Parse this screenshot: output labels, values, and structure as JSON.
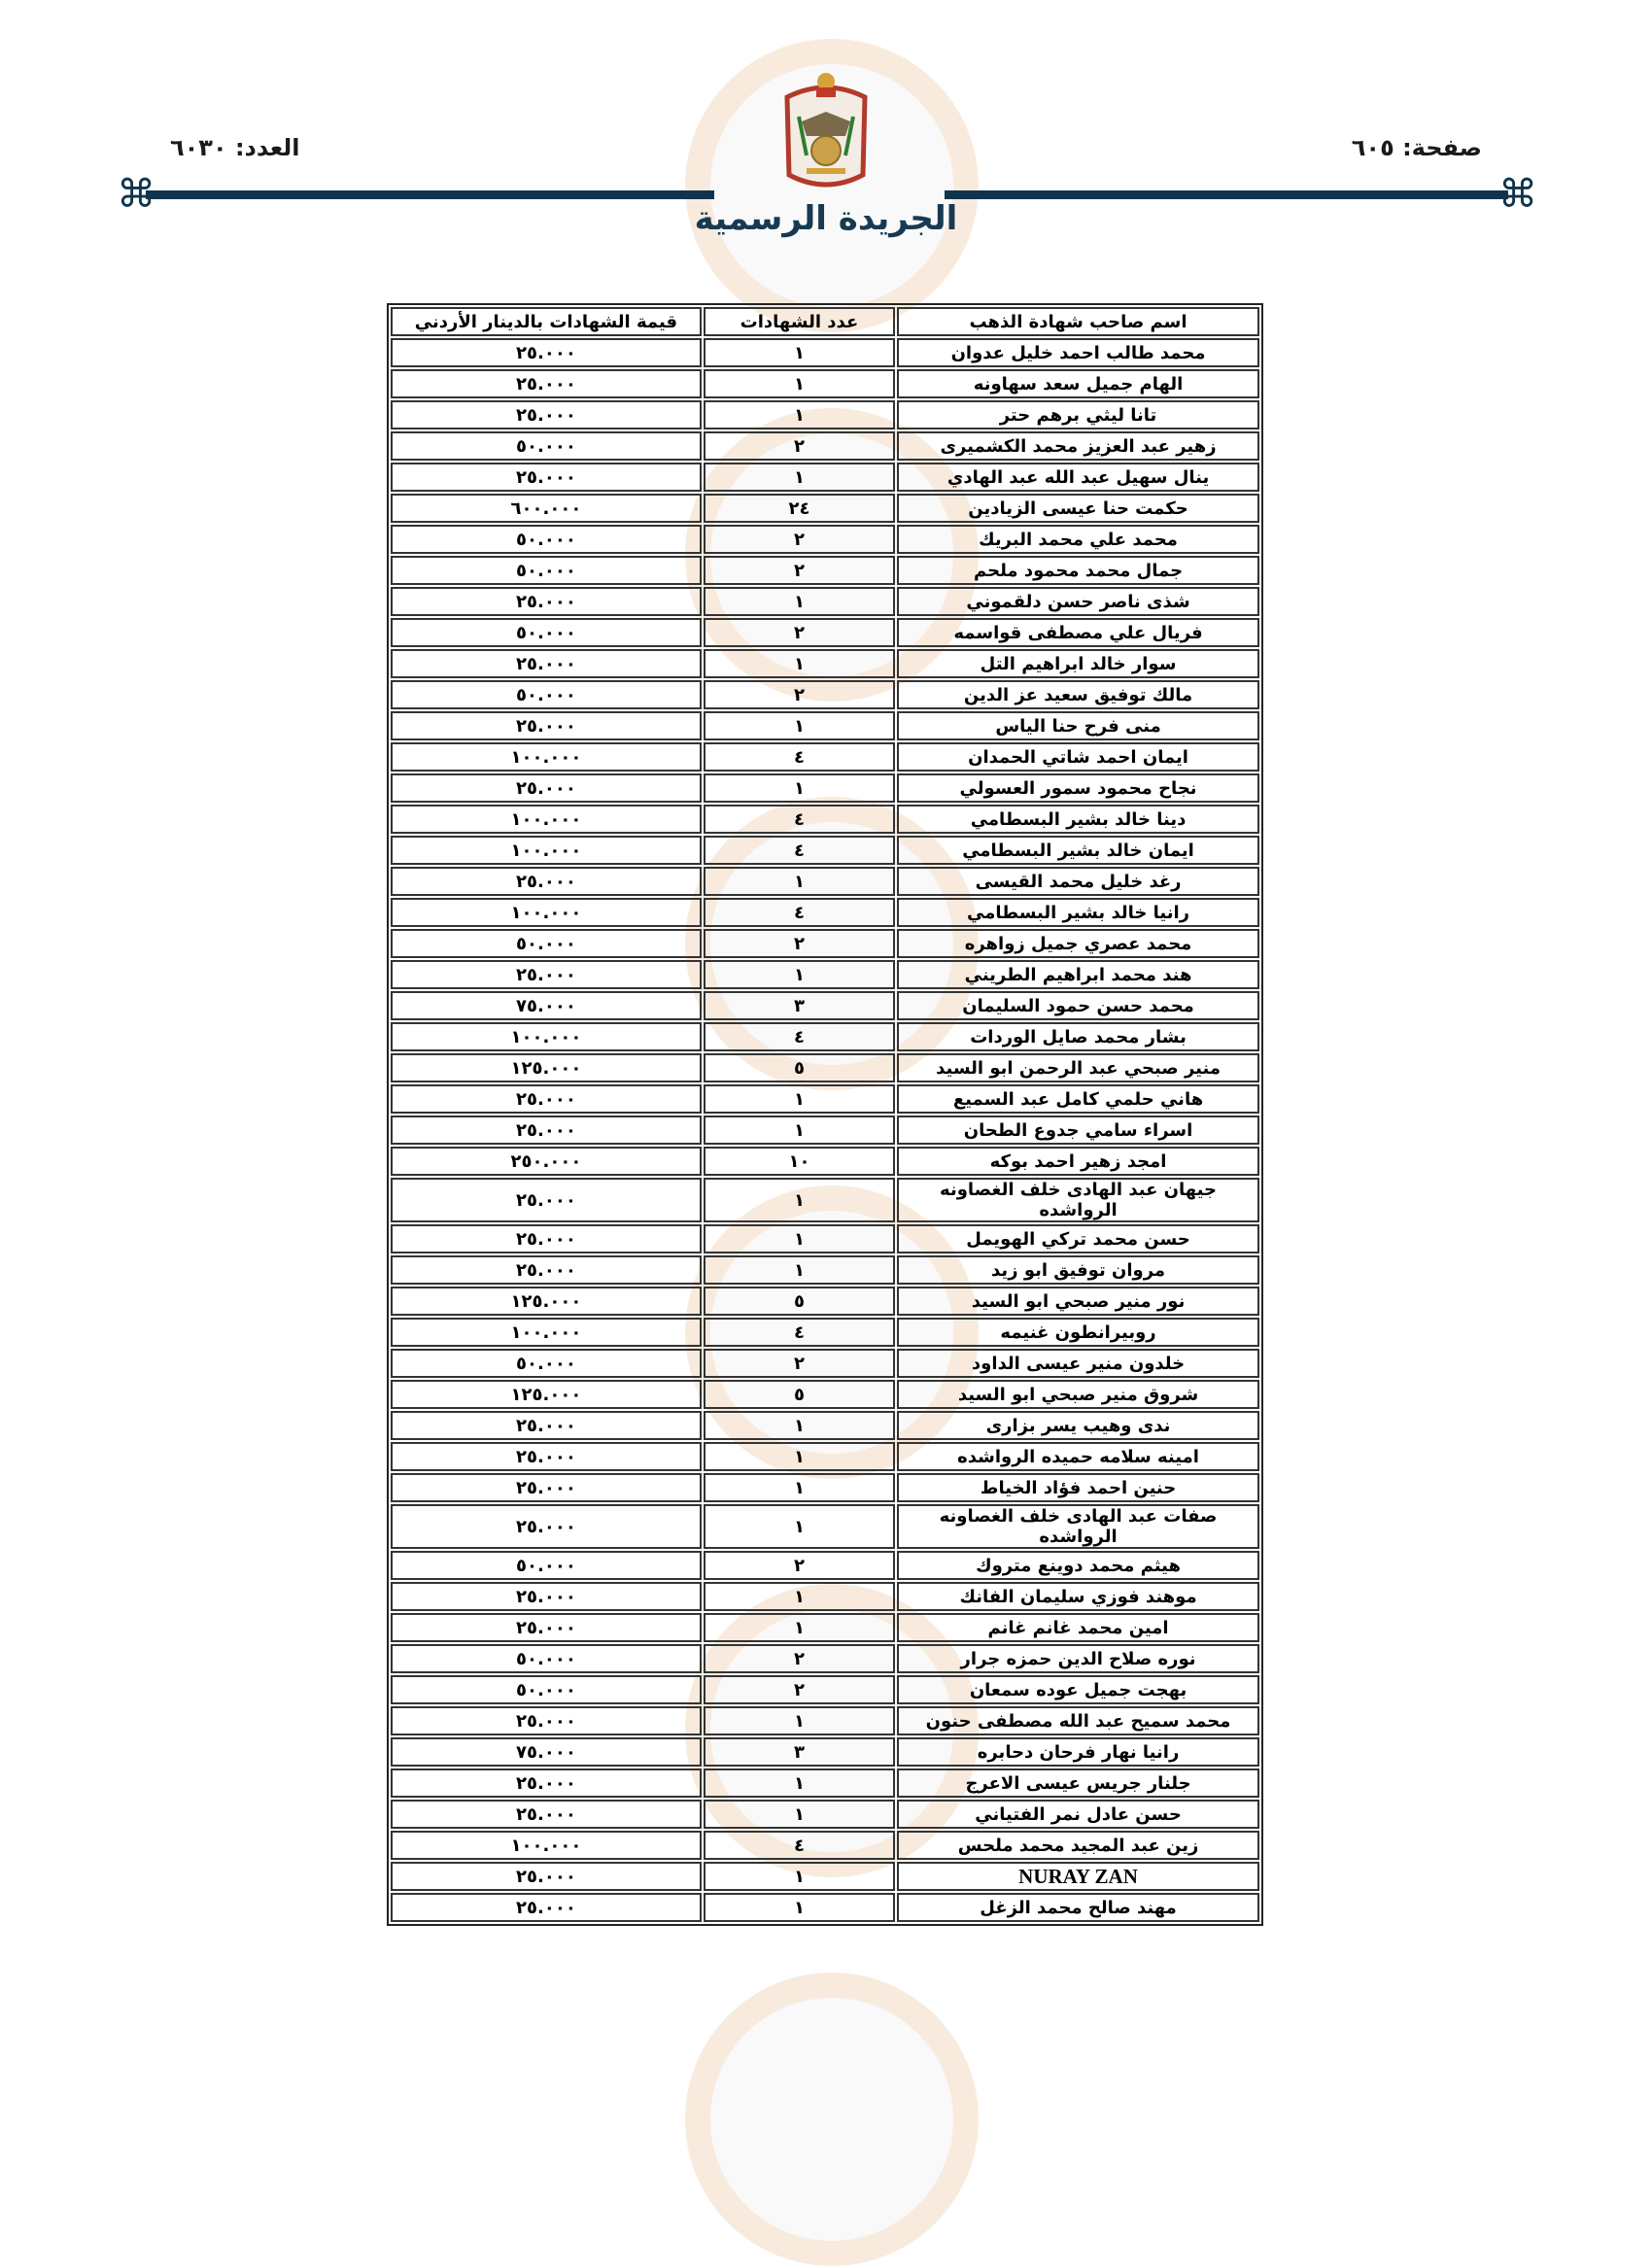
{
  "header": {
    "page_label": "صفحة: ٦٠٥",
    "issue_label": "العدد: ٦٠٣٠",
    "title": "الجريدة الرسمية",
    "emblem_icon": "jordan-coat-of-arms-icon",
    "accent_color": "#10344d"
  },
  "table": {
    "columns": [
      "اسم صاحب شهادة الذهب",
      "عدد الشهادات",
      "قيمة الشهادات بالدينار الأردني"
    ],
    "rows": [
      [
        "محمد طالب احمد خليل عدوان",
        "١",
        "٢٥.٠٠٠"
      ],
      [
        "الهام جميل سعد سهاونه",
        "١",
        "٢٥.٠٠٠"
      ],
      [
        "تانا ليثي برهم حتر",
        "١",
        "٢٥.٠٠٠"
      ],
      [
        "زهير عبد العزيز محمد الكشميرى",
        "٢",
        "٥٠.٠٠٠"
      ],
      [
        "ينال سهيل عبد الله عبد الهادي",
        "١",
        "٢٥.٠٠٠"
      ],
      [
        "حكمت حنا عيسى الزيادين",
        "٢٤",
        "٦٠٠.٠٠٠"
      ],
      [
        "محمد علي محمد البريك",
        "٢",
        "٥٠.٠٠٠"
      ],
      [
        "جمال محمد محمود ملحم",
        "٢",
        "٥٠.٠٠٠"
      ],
      [
        "شذى ناصر حسن دلقموني",
        "١",
        "٢٥.٠٠٠"
      ],
      [
        "فريال علي مصطفى قواسمه",
        "٢",
        "٥٠.٠٠٠"
      ],
      [
        "سوار خالد ابراهيم التل",
        "١",
        "٢٥.٠٠٠"
      ],
      [
        "مالك توفيق سعيد عز الدين",
        "٢",
        "٥٠.٠٠٠"
      ],
      [
        "منى فرح حنا الياس",
        "١",
        "٢٥.٠٠٠"
      ],
      [
        "ايمان احمد شاتي الحمدان",
        "٤",
        "١٠٠.٠٠٠"
      ],
      [
        "نجاح محمود سمور العسولي",
        "١",
        "٢٥.٠٠٠"
      ],
      [
        "دينا خالد بشير البسطامي",
        "٤",
        "١٠٠.٠٠٠"
      ],
      [
        "ايمان خالد بشير البسطامي",
        "٤",
        "١٠٠.٠٠٠"
      ],
      [
        "رغد خليل محمد القيسى",
        "١",
        "٢٥.٠٠٠"
      ],
      [
        "رانيا خالد بشير البسطامي",
        "٤",
        "١٠٠.٠٠٠"
      ],
      [
        "محمد عصري جميل زواهره",
        "٢",
        "٥٠.٠٠٠"
      ],
      [
        "هند محمد ابراهيم الطريني",
        "١",
        "٢٥.٠٠٠"
      ],
      [
        "محمد حسن حمود السليمان",
        "٣",
        "٧٥.٠٠٠"
      ],
      [
        "بشار محمد صايل الوردات",
        "٤",
        "١٠٠.٠٠٠"
      ],
      [
        "منير صبحي عبد الرحمن ابو السيد",
        "٥",
        "١٢٥.٠٠٠"
      ],
      [
        "هاني حلمي كامل عبد السميع",
        "١",
        "٢٥.٠٠٠"
      ],
      [
        "اسراء سامي جدوع الطحان",
        "١",
        "٢٥.٠٠٠"
      ],
      [
        "امجد زهير احمد بوكه",
        "١٠",
        "٢٥٠.٠٠٠"
      ],
      [
        "جيهان عبد الهادى خلف الغصاونه الرواشده",
        "١",
        "٢٥.٠٠٠"
      ],
      [
        "حسن محمد تركي الهويمل",
        "١",
        "٢٥.٠٠٠"
      ],
      [
        "مروان توفيق ابو زيد",
        "١",
        "٢٥.٠٠٠"
      ],
      [
        "نور منير صبحي ابو السيد",
        "٥",
        "١٢٥.٠٠٠"
      ],
      [
        "روبيرانطون غنيمه",
        "٤",
        "١٠٠.٠٠٠"
      ],
      [
        "خلدون منير عيسى الداود",
        "٢",
        "٥٠.٠٠٠"
      ],
      [
        "شروق منير صبحي ابو السيد",
        "٥",
        "١٢٥.٠٠٠"
      ],
      [
        "ندى وهيب يسر بزارى",
        "١",
        "٢٥.٠٠٠"
      ],
      [
        "امينه سلامه حميده الرواشده",
        "١",
        "٢٥.٠٠٠"
      ],
      [
        "حنين احمد فؤاد الخياط",
        "١",
        "٢٥.٠٠٠"
      ],
      [
        "صفات عبد الهادى خلف الغصاونه الرواشده",
        "١",
        "٢٥.٠٠٠"
      ],
      [
        "هيثم محمد دوينع متروك",
        "٢",
        "٥٠.٠٠٠"
      ],
      [
        "موهند فوزي سليمان الفانك",
        "١",
        "٢٥.٠٠٠"
      ],
      [
        "امين محمد غانم غانم",
        "١",
        "٢٥.٠٠٠"
      ],
      [
        "نوره صلاح الدين حمزه جرار",
        "٢",
        "٥٠.٠٠٠"
      ],
      [
        "بهجت جميل عوده سمعان",
        "٢",
        "٥٠.٠٠٠"
      ],
      [
        "محمد سميح عبد الله مصطفى حنون",
        "١",
        "٢٥.٠٠٠"
      ],
      [
        "رانيا نهار فرحان دحابره",
        "٣",
        "٧٥.٠٠٠"
      ],
      [
        "جلنار جريس عيسى الاعرج",
        "١",
        "٢٥.٠٠٠"
      ],
      [
        "حسن عادل نمر الفتياني",
        "١",
        "٢٥.٠٠٠"
      ],
      [
        "زين عبد المجيد محمد ملحس",
        "٤",
        "١٠٠.٠٠٠"
      ],
      [
        "NURAY ZAN",
        "١",
        "٢٥.٠٠٠"
      ],
      [
        "مهند صالح محمد الزغل",
        "١",
        "٢٥.٠٠٠"
      ]
    ]
  }
}
